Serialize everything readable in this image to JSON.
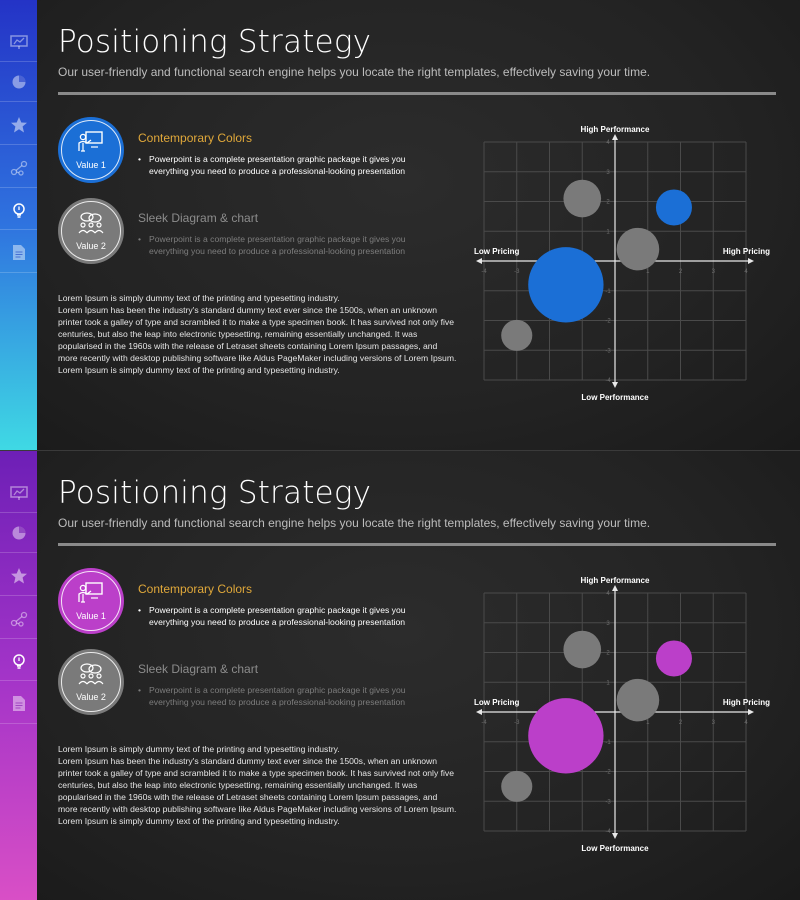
{
  "slides": [
    {
      "theme": "blue",
      "accent": "#1b6fd6",
      "sidebar_gradient": [
        "#2433c6",
        "#3fd9e4"
      ],
      "title": "Positioning Strategy",
      "subtitle": "Our user-friendly and functional search engine helps you locate the right templates, effectively saving your time.",
      "values": [
        {
          "label": "Value 1",
          "icon": "presenter-icon",
          "heading": "Contemporary Colors",
          "lines": [
            "Powerpoint is a complete presentation graphic package it gives you",
            "everything you need to produce a professional-looking presentation"
          ]
        },
        {
          "label": "Value 2",
          "icon": "team-chat-icon",
          "heading": "Sleek Diagram & chart",
          "lines": [
            "Powerpoint is a complete presentation graphic package it gives you",
            "everything you need to produce a professional-looking presentation"
          ]
        }
      ],
      "body_lines": [
        "Lorem Ipsum is simply dummy text of the printing and typesetting industry.",
        "Lorem Ipsum has been the industry's standard dummy text ever since the 1500s, when an unknown",
        "printer took a galley of type and scrambled it to make a type specimen book. It has survived not only five",
        "centuries, but also the leap into electronic typesetting, remaining essentially unchanged.  It was",
        "popularised in the 1960s with the release of Letraset sheets containing Lorem Ipsum passages, and",
        "more recently with desktop publishing software like Aldus PageMaker  including versions of Lorem Ipsum.",
        "Lorem Ipsum is simply dummy text of the printing and typesetting industry."
      ],
      "sidebar_icons": [
        "presentation-icon",
        "pie-chart-icon",
        "star-icon",
        "network-icon",
        "lightbulb-icon",
        "document-icon"
      ]
    },
    {
      "theme": "purple",
      "accent": "#bb3fc9",
      "sidebar_gradient": [
        "#6d1fb6",
        "#d94fc6"
      ],
      "title": "Positioning Strategy",
      "subtitle": "Our user-friendly and functional search engine helps you locate the right templates, effectively saving your time.",
      "values": [
        {
          "label": "Value 1",
          "icon": "presenter-icon",
          "heading": "Contemporary Colors",
          "lines": [
            "Powerpoint is a complete presentation graphic package it gives you",
            "everything you need to produce a professional-looking presentation"
          ]
        },
        {
          "label": "Value 2",
          "icon": "team-chat-icon",
          "heading": "Sleek Diagram & chart",
          "lines": [
            "Powerpoint is a complete presentation graphic package it gives you",
            "everything you need to produce a professional-looking presentation"
          ]
        }
      ],
      "body_lines": [
        "Lorem Ipsum is simply dummy text of the printing and typesetting industry.",
        "Lorem Ipsum has been the industry's standard dummy text ever since the 1500s, when an unknown",
        "printer took a galley of type and scrambled it to make a type specimen book. It has survived not only five",
        "centuries, but also the leap into electronic typesetting, remaining essentially unchanged.  It was",
        "popularised in the 1960s with the release of Letraset sheets containing Lorem Ipsum passages, and",
        "more recently with desktop publishing software like Aldus PageMaker  including versions of Lorem Ipsum.",
        "Lorem Ipsum is simply dummy text of the printing and typesetting industry."
      ],
      "sidebar_icons": [
        "presentation-icon",
        "pie-chart-icon",
        "star-icon",
        "network-icon",
        "lightbulb-icon",
        "document-icon"
      ]
    }
  ],
  "chart_data": [
    {
      "type": "scatter",
      "variant": "bubble",
      "title": "",
      "axis_labels": {
        "top": "High Performance",
        "bottom": "Low Performance",
        "left": "Low Pricing",
        "right": "High Pricing"
      },
      "xlim": [
        -4,
        4
      ],
      "ylim": [
        -4,
        4
      ],
      "x_ticks": [
        -4,
        -3,
        -2,
        -1,
        1,
        2,
        3,
        4
      ],
      "y_ticks": [
        -4,
        -3,
        -2,
        -1,
        1,
        2,
        3,
        4
      ],
      "grid": true,
      "bubbles": [
        {
          "x": -1,
          "y": 2.1,
          "size": 1.15,
          "color": "#7a7a7a"
        },
        {
          "x": 1.8,
          "y": 1.8,
          "size": 1.1,
          "color": "#1b6fd6"
        },
        {
          "x": 0.7,
          "y": 0.4,
          "size": 1.3,
          "color": "#7a7a7a"
        },
        {
          "x": -1.5,
          "y": -0.8,
          "size": 2.3,
          "color": "#1b6fd6"
        },
        {
          "x": -3,
          "y": -2.5,
          "size": 0.95,
          "color": "#7a7a7a"
        }
      ]
    },
    {
      "type": "scatter",
      "variant": "bubble",
      "title": "",
      "axis_labels": {
        "top": "High Performance",
        "bottom": "Low Performance",
        "left": "Low Pricing",
        "right": "High Pricing"
      },
      "xlim": [
        -4,
        4
      ],
      "ylim": [
        -4,
        4
      ],
      "x_ticks": [
        -4,
        -3,
        -2,
        -1,
        1,
        2,
        3,
        4
      ],
      "y_ticks": [
        -4,
        -3,
        -2,
        -1,
        1,
        2,
        3,
        4
      ],
      "grid": true,
      "bubbles": [
        {
          "x": -1,
          "y": 2.1,
          "size": 1.15,
          "color": "#7a7a7a"
        },
        {
          "x": 1.8,
          "y": 1.8,
          "size": 1.1,
          "color": "#bb3fc9"
        },
        {
          "x": 0.7,
          "y": 0.4,
          "size": 1.3,
          "color": "#7a7a7a"
        },
        {
          "x": -1.5,
          "y": -0.8,
          "size": 2.3,
          "color": "#bb3fc9"
        },
        {
          "x": -3,
          "y": -2.5,
          "size": 0.95,
          "color": "#7a7a7a"
        }
      ]
    }
  ]
}
